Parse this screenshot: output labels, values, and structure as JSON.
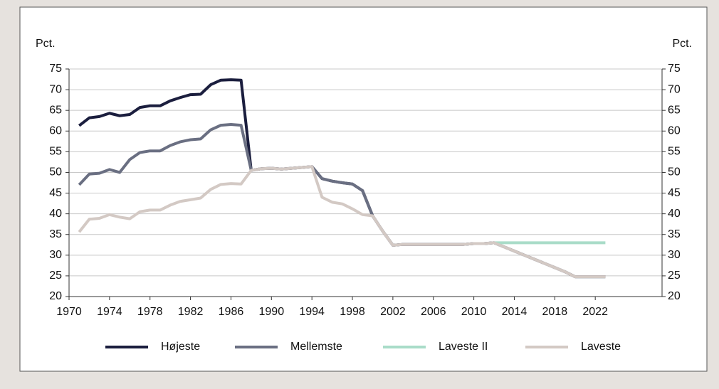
{
  "chart_data": {
    "type": "line",
    "y_label": "Pct.",
    "y2_label": "Pct.",
    "x": [
      1971,
      1972,
      1973,
      1974,
      1975,
      1976,
      1977,
      1978,
      1979,
      1980,
      1981,
      1982,
      1983,
      1984,
      1985,
      1986,
      1987,
      1988,
      1989,
      1990,
      1991,
      1992,
      1993,
      1994,
      1995,
      1996,
      1997,
      1998,
      1999,
      2000,
      2001,
      2002,
      2003,
      2004,
      2005,
      2006,
      2007,
      2008,
      2009,
      2010,
      2011,
      2012,
      2013,
      2014,
      2015,
      2016,
      2017,
      2018,
      2019,
      2020,
      2021,
      2022,
      2023
    ],
    "series": [
      {
        "name": "Højeste",
        "color": "#1b1e3e",
        "values": [
          61.3,
          63.2,
          63.5,
          64.3,
          63.7,
          64.0,
          65.7,
          66.1,
          66.1,
          67.3,
          68.1,
          68.8,
          68.9,
          71.2,
          72.3,
          72.4,
          72.3,
          50.5,
          50.9,
          51.0,
          50.8,
          51.0,
          51.2,
          51.4,
          48.5,
          47.9,
          47.5,
          47.2,
          45.6,
          39.5,
          35.8,
          32.4,
          32.6,
          32.6,
          32.6,
          32.6,
          32.6,
          32.6,
          32.6,
          32.8,
          32.8,
          33.0,
          32.0,
          31.0,
          30.0,
          29.0,
          28.0,
          27.0,
          26.0,
          24.8,
          24.8,
          24.8,
          24.8
        ]
      },
      {
        "name": "Mellemste",
        "color": "#6a6f82",
        "values": [
          47.0,
          49.6,
          49.8,
          50.7,
          50.0,
          53.1,
          54.8,
          55.2,
          55.2,
          56.5,
          57.4,
          57.9,
          58.1,
          60.3,
          61.4,
          61.6,
          61.4,
          50.5,
          50.9,
          51.0,
          50.8,
          51.0,
          51.2,
          51.4,
          48.5,
          47.9,
          47.5,
          47.2,
          45.6,
          39.5,
          35.8,
          32.4,
          32.6,
          32.6,
          32.6,
          32.6,
          32.6,
          32.6,
          32.6,
          32.8,
          32.8,
          33.0,
          32.0,
          31.0,
          30.0,
          29.0,
          28.0,
          27.0,
          26.0,
          24.8,
          24.8,
          24.8,
          24.8
        ]
      },
      {
        "name": "Laveste II",
        "color": "#a9dcc8",
        "values": [
          null,
          null,
          null,
          null,
          null,
          null,
          null,
          null,
          null,
          null,
          null,
          null,
          null,
          null,
          null,
          null,
          null,
          null,
          null,
          null,
          null,
          null,
          null,
          null,
          null,
          null,
          null,
          null,
          null,
          null,
          null,
          null,
          null,
          null,
          null,
          null,
          null,
          null,
          null,
          null,
          null,
          33.0,
          33.0,
          33.0,
          33.0,
          33.0,
          33.0,
          33.0,
          33.0,
          33.0,
          33.0,
          33.0,
          33.0
        ]
      },
      {
        "name": "Laveste",
        "color": "#d3c9c4",
        "values": [
          35.6,
          38.7,
          38.9,
          39.8,
          39.2,
          38.8,
          40.5,
          40.9,
          40.9,
          42.1,
          43.0,
          43.4,
          43.8,
          45.9,
          47.1,
          47.3,
          47.2,
          50.5,
          50.9,
          51.0,
          50.8,
          51.0,
          51.2,
          51.4,
          44.0,
          42.8,
          42.4,
          41.2,
          39.8,
          39.5,
          35.8,
          32.4,
          32.6,
          32.6,
          32.6,
          32.6,
          32.6,
          32.6,
          32.6,
          32.8,
          32.8,
          33.0,
          32.0,
          31.0,
          30.0,
          29.0,
          28.0,
          27.0,
          26.0,
          24.8,
          24.8,
          24.8,
          24.8
        ]
      }
    ],
    "xlim": [
      1970,
      2028.6
    ],
    "xticks": [
      1970,
      1974,
      1978,
      1982,
      1986,
      1990,
      1994,
      1998,
      2002,
      2006,
      2010,
      2014,
      2018,
      2022
    ],
    "ylim": [
      20,
      75
    ],
    "yticks": [
      20,
      25,
      30,
      35,
      40,
      45,
      50,
      55,
      60,
      65,
      70,
      75
    ],
    "y2lim": [
      20,
      75
    ],
    "y2ticks": [
      20,
      25,
      30,
      35,
      40,
      45,
      50,
      55,
      60,
      65,
      70,
      75
    ],
    "grid": true
  }
}
